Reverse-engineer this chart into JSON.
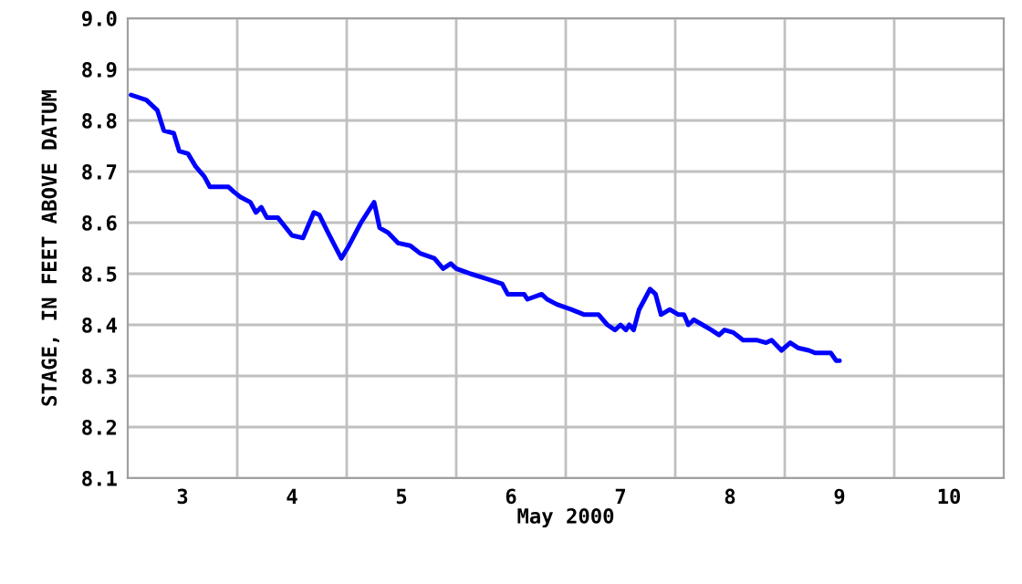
{
  "chart_data": {
    "type": "line",
    "xlabel": "May 2000",
    "ylabel": "STAGE, IN FEET ABOVE DATUM",
    "xlim": [
      2.5,
      10.5
    ],
    "ylim": [
      8.1,
      9.0
    ],
    "xticks": [
      3,
      {
        "value": 3.5,
        "label": null
      },
      4,
      {
        "value": 4.5,
        "label": null
      },
      5,
      {
        "value": 5.5,
        "label": null
      },
      6,
      {
        "value": 6.5,
        "label": null
      },
      7,
      {
        "value": 7.5,
        "label": null
      },
      8,
      {
        "value": 8.5,
        "label": null
      },
      9,
      {
        "value": 9.5,
        "label": null
      },
      10
    ],
    "yticks": [
      {
        "value": 8.1,
        "label": "8.1"
      },
      {
        "value": 8.2,
        "label": "8.2"
      },
      {
        "value": 8.3,
        "label": "8.3"
      },
      {
        "value": 8.4,
        "label": "8.4"
      },
      {
        "value": 8.5,
        "label": "8.5"
      },
      {
        "value": 8.6,
        "label": "8.6"
      },
      {
        "value": 8.7,
        "label": "8.7"
      },
      {
        "value": 8.8,
        "label": "8.8"
      },
      {
        "value": 8.9,
        "label": "8.9"
      },
      {
        "value": 9.0,
        "label": "9.0"
      }
    ],
    "grid": true,
    "marker": "none",
    "line_style": "solid",
    "series": [
      {
        "color": "#0000ff",
        "x": [
          2.53,
          2.67,
          2.77,
          2.83,
          2.92,
          2.97,
          3.05,
          3.12,
          3.2,
          3.25,
          3.42,
          3.47,
          3.53,
          3.62,
          3.67,
          3.72,
          3.77,
          3.87,
          4.0,
          4.1,
          4.2,
          4.25,
          4.33,
          4.45,
          4.52,
          4.63,
          4.75,
          4.8,
          4.88,
          4.97,
          5.08,
          5.17,
          5.3,
          5.38,
          5.45,
          5.5,
          5.63,
          5.78,
          5.92,
          5.97,
          6.12,
          6.15,
          6.28,
          6.33,
          6.42,
          6.55,
          6.67,
          6.8,
          6.88,
          6.95,
          7.0,
          7.05,
          7.08,
          7.12,
          7.17,
          7.27,
          7.32,
          7.37,
          7.45,
          7.53,
          7.58,
          7.62,
          7.67,
          7.75,
          7.83,
          7.9,
          7.95,
          8.03,
          8.12,
          8.25,
          8.33,
          8.38,
          8.47,
          8.55,
          8.62,
          8.72,
          8.78,
          8.92,
          8.97,
          9.0
        ],
        "values": [
          8.85,
          8.84,
          8.82,
          8.78,
          8.775,
          8.74,
          8.735,
          8.71,
          8.69,
          8.67,
          8.67,
          8.66,
          8.65,
          8.64,
          8.62,
          8.63,
          8.61,
          8.61,
          8.575,
          8.57,
          8.62,
          8.615,
          8.58,
          8.53,
          8.555,
          8.6,
          8.64,
          8.59,
          8.58,
          8.56,
          8.555,
          8.54,
          8.53,
          8.51,
          8.52,
          8.51,
          8.5,
          8.49,
          8.48,
          8.46,
          8.46,
          8.45,
          8.46,
          8.45,
          8.44,
          8.43,
          8.42,
          8.42,
          8.4,
          8.39,
          8.4,
          8.39,
          8.4,
          8.39,
          8.43,
          8.47,
          8.46,
          8.42,
          8.43,
          8.42,
          8.42,
          8.4,
          8.41,
          8.4,
          8.39,
          8.38,
          8.39,
          8.385,
          8.37,
          8.37,
          8.365,
          8.37,
          8.35,
          8.365,
          8.355,
          8.35,
          8.345,
          8.345,
          8.33,
          8.33
        ]
      }
    ]
  }
}
